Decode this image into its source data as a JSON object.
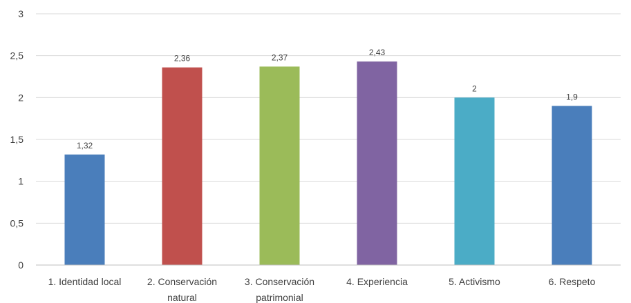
{
  "chart_data": {
    "type": "bar",
    "categories": [
      [
        "1. Identidad local"
      ],
      [
        "2. Conservación",
        "natural"
      ],
      [
        "3. Conservación",
        "patrimonial"
      ],
      [
        "4. Experiencia"
      ],
      [
        "5.  Activismo"
      ],
      [
        "6. Respeto"
      ]
    ],
    "values": [
      1.32,
      2.36,
      2.37,
      2.43,
      2,
      1.9
    ],
    "value_labels": [
      "1,32",
      "2,36",
      "2,37",
      "2,43",
      "2",
      "1,9"
    ],
    "colors": [
      "#4a7ebb",
      "#c0504d",
      "#9bbb59",
      "#8064a2",
      "#4bacc6",
      "#4a7ebb"
    ],
    "ylim": [
      0,
      3
    ],
    "yticks": [
      0,
      0.5,
      1,
      1.5,
      2,
      2.5,
      3
    ],
    "ytick_labels": [
      "0",
      "0,5",
      "1",
      "1,5",
      "2",
      "2,5",
      "3"
    ],
    "grid": true,
    "legend": "none",
    "title": "",
    "xlabel": "",
    "ylabel": ""
  }
}
